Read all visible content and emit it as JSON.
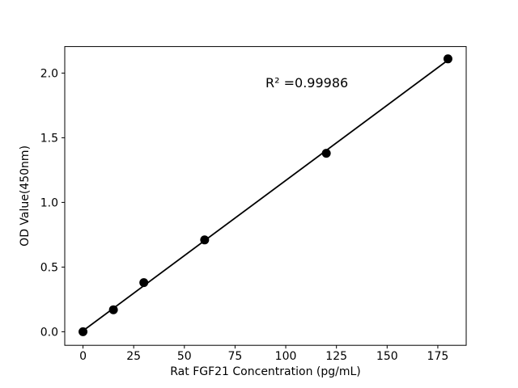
{
  "chart_data": {
    "type": "scatter",
    "title": "",
    "xlabel": "Rat FGF21 Concentration (pg/mL)",
    "ylabel": "OD Value(450nm)",
    "series": [
      {
        "name": "standard-points",
        "x": [
          0,
          15,
          30,
          60,
          120,
          180
        ],
        "y": [
          0.0,
          0.17,
          0.38,
          0.71,
          1.38,
          2.11
        ]
      }
    ],
    "fit_line": {
      "x1": 0,
      "y1": 0.007,
      "x2": 180,
      "y2": 2.1
    },
    "annotation": {
      "text": "R² =0.99986",
      "x": 90,
      "y": 1.89
    },
    "xlim": [
      -9,
      189
    ],
    "ylim": [
      -0.105,
      2.205
    ],
    "xticks": [
      0,
      25,
      50,
      75,
      100,
      125,
      150,
      175
    ],
    "yticks": [
      0.0,
      0.5,
      1.0,
      1.5,
      2.0
    ],
    "ytick_decimals": 1,
    "grid": false,
    "legend": "none",
    "marker_color": "#000000",
    "line_color": "#000000",
    "axis_color": "#000000",
    "background_color": "#ffffff"
  }
}
